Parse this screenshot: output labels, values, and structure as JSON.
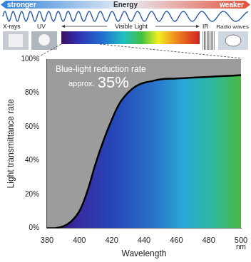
{
  "banner": {
    "energy_arrow": {
      "left": "stronger",
      "center": "Energy",
      "right": "weaker"
    },
    "bands": [
      "X-rays",
      "UV",
      "Visible Light",
      "IR",
      "Radio waves"
    ]
  },
  "chart_data": {
    "type": "line",
    "x_label": "Wavelength",
    "x_unit": "nm",
    "y_label": "Light transmittance rate",
    "x": [
      380,
      385,
      390,
      395,
      400,
      405,
      410,
      415,
      420,
      425,
      430,
      435,
      440,
      445,
      450,
      460,
      470,
      480,
      490,
      500
    ],
    "values": [
      0,
      0,
      1,
      4,
      10,
      22,
      38,
      52,
      64,
      74,
      80,
      84,
      86,
      87,
      88,
      88.5,
      89,
      89.5,
      90,
      90.5
    ],
    "color": "#000000",
    "xlim": [
      380,
      500
    ],
    "xticks": [
      380,
      400,
      420,
      440,
      460,
      480,
      500
    ],
    "ylim": [
      0,
      100
    ],
    "yticks": [
      {
        "value": 0,
        "label": "0%"
      },
      {
        "value": 20,
        "label": "20%"
      },
      {
        "value": 40,
        "label": "40%"
      },
      {
        "value": 60,
        "label": "60%"
      },
      {
        "value": 80,
        "label": "80%"
      },
      {
        "value": 100,
        "label": "100%"
      }
    ],
    "grid": false,
    "annotation": {
      "text": "Blue-light reduction rate",
      "qualifier": "approx.",
      "value": 35,
      "label": "35%"
    }
  }
}
